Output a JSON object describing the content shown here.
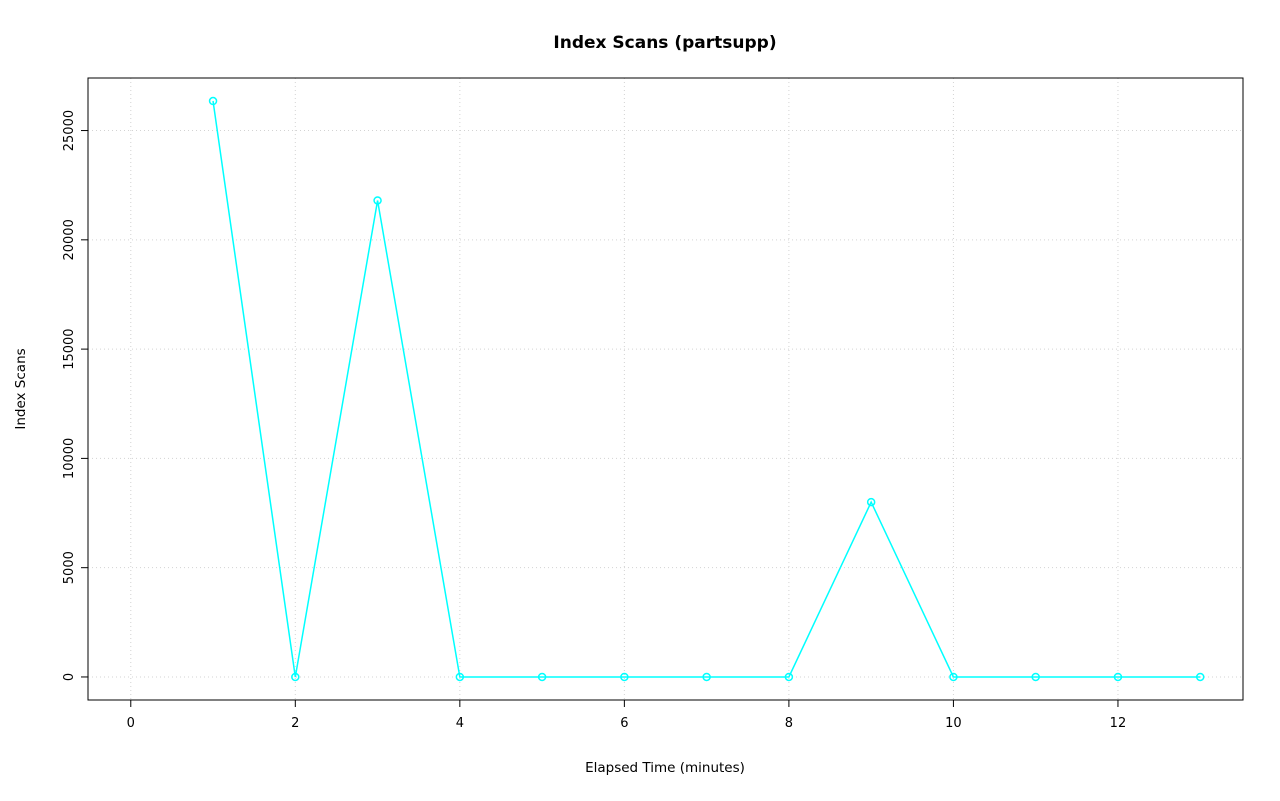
{
  "chart_data": {
    "type": "line",
    "title": "Index Scans (partsupp)",
    "xlabel": "Elapsed Time (minutes)",
    "ylabel": "Index Scans",
    "x": [
      1,
      2,
      3,
      4,
      5,
      6,
      7,
      8,
      9,
      10,
      11,
      12,
      13
    ],
    "y": [
      26350,
      0,
      21800,
      0,
      0,
      0,
      0,
      0,
      8000,
      0,
      0,
      0,
      0
    ],
    "x_ticks": [
      0,
      2,
      4,
      6,
      8,
      10,
      12
    ],
    "y_ticks": [
      0,
      5000,
      10000,
      15000,
      20000,
      25000
    ],
    "xlim": [
      -0.52,
      13.52
    ],
    "ylim": [
      -1054,
      27404
    ],
    "series_color": "#00FFFF",
    "grid_color": "#D3D3D3",
    "axis_color": "#000000",
    "marker": "open-circle",
    "grid": "dotted",
    "legend_position": "none"
  }
}
